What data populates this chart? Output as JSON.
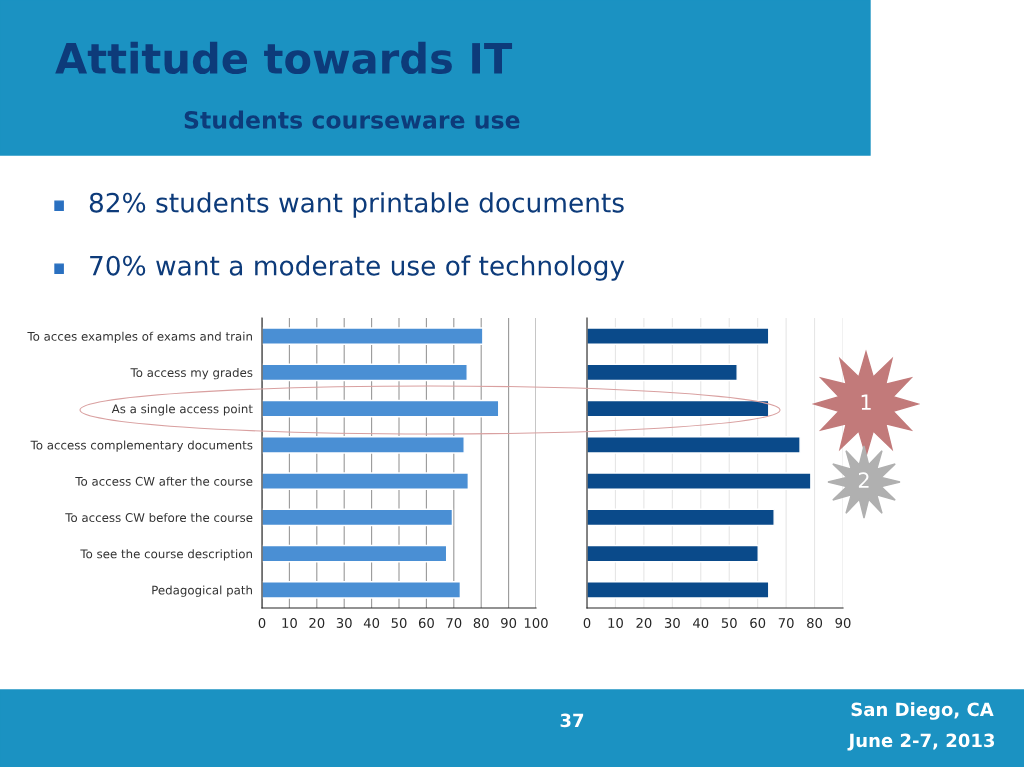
{
  "chart_data": [
    {
      "type": "bar",
      "orientation": "horizontal",
      "title": "Attitude towards IT",
      "subtitle": "Students courseware use",
      "categories": [
        "To acces examples of exams and train",
        "To access my grades",
        "As a single access point",
        "To access complementary documents",
        "To access CW after the course",
        "To access CW before the course",
        "To see the course description",
        "Pedagogical path"
      ],
      "values": [
        80.6,
        74.9,
        86.4,
        73.8,
        75.3,
        69.5,
        67.4,
        72.4
      ],
      "color": "#4a8fd4",
      "xlim": [
        0,
        100
      ],
      "xticks": [
        0,
        10,
        20,
        30,
        40,
        50,
        60,
        70,
        80,
        90,
        100
      ],
      "grid": "x",
      "annotations": [
        "82% students want printable documents",
        "70% want a moderate use of technology",
        "37",
        "San Diego, CA",
        "June 2-7, 2013"
      ]
    },
    {
      "type": "bar",
      "orientation": "horizontal",
      "categories": [
        null,
        null,
        null,
        null,
        null,
        null,
        null,
        null
      ],
      "values": [
        63.9,
        52.8,
        63.9,
        74.9,
        78.7,
        65.8,
        60.2,
        63.9
      ],
      "color": "#0a4a8a",
      "xlim": [
        0,
        90
      ],
      "xticks": [
        0,
        10,
        20,
        30,
        40,
        50,
        60,
        70,
        80,
        90
      ],
      "grid": "x",
      "annotations": [
        "1",
        "2"
      ]
    }
  ]
}
